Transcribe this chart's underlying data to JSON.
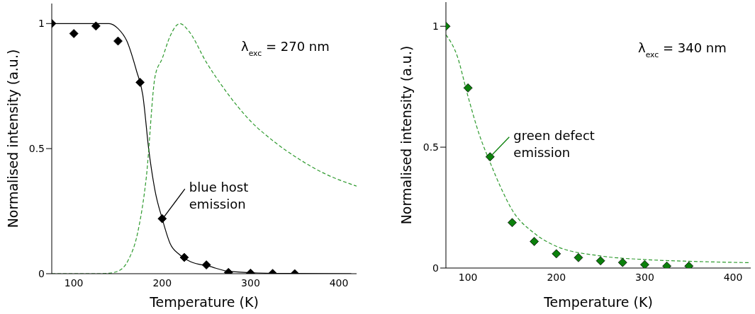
{
  "chart_data": [
    {
      "type": "scatter",
      "xlabel": "Temperature (K)",
      "ylabel": "Normalised intensity (a.u.)",
      "xlim": [
        75,
        420
      ],
      "xticks": [
        100,
        200,
        300,
        400
      ],
      "ylim": [
        0,
        1.08
      ],
      "yticks": [
        0,
        0.5,
        1
      ],
      "annotations": [
        "λ$_{exc}$ = 270 nm",
        {
          "text": "blue host emission",
          "x": 200,
          "y": 0.22
        }
      ],
      "series": [
        {
          "type": "line",
          "color": "#000000",
          "line_style": "solid",
          "marker": "none",
          "x": [
            75,
            140,
            150,
            160,
            171,
            178,
            185,
            192,
            200,
            209,
            220,
            232,
            253,
            274,
            300,
            340,
            414
          ],
          "values": [
            1,
            1,
            0.98,
            0.93,
            0.81,
            0.715,
            0.49,
            0.33,
            0.22,
            0.12,
            0.075,
            0.048,
            0.03,
            0.01,
            0.004,
            0.001,
            0
          ]
        },
        {
          "type": "line",
          "color": "#2e9a2e",
          "line_style": "dashed",
          "marker": "none",
          "x": [
            75,
            130,
            140,
            150,
            162,
            172,
            182,
            192,
            200,
            209,
            220,
            230,
            250,
            272,
            300,
            327,
            354,
            381,
            420
          ],
          "values": [
            0,
            0,
            0.002,
            0.01,
            0.057,
            0.16,
            0.385,
            0.79,
            0.86,
            0.95,
            1,
            0.97,
            0.845,
            0.73,
            0.61,
            0.527,
            0.46,
            0.405,
            0.35
          ]
        },
        {
          "color": "#000000",
          "marker": "diamond",
          "x": [
            75,
            100,
            125,
            150,
            175,
            200,
            225,
            250,
            275,
            300,
            325,
            350
          ],
          "values": [
            1,
            0.96,
            0.99,
            0.93,
            0.765,
            0.22,
            0.065,
            0.035,
            0.005,
            0.002,
            0.001,
            0
          ]
        }
      ]
    },
    {
      "type": "scatter",
      "xlabel": "Temperature (K)",
      "ylabel": "Normalised intensity (a.u.)",
      "xlim": [
        75,
        420
      ],
      "xticks": [
        100,
        200,
        300,
        400
      ],
      "ylim": [
        0,
        1.1
      ],
      "yticks": [
        0,
        0.5,
        1
      ],
      "annotations": [
        "λ$_{exc}$ = 340 nm",
        {
          "text": "green defect emission",
          "x": 125,
          "y": 0.46
        }
      ],
      "series": [
        {
          "type": "line",
          "color": "#2e9a2e",
          "line_style": "dashed",
          "marker": "none",
          "x": [
            75,
            87.5,
            100,
            112.5,
            125,
            137.5,
            150,
            175,
            200,
            250,
            300,
            350,
            420
          ],
          "values": [
            0.965,
            0.88,
            0.71,
            0.555,
            0.437,
            0.33,
            0.24,
            0.144,
            0.09,
            0.05,
            0.035,
            0.028,
            0.022
          ]
        },
        {
          "color": "#0b800b",
          "marker": "diamond",
          "x": [
            75,
            100,
            125,
            150,
            175,
            200,
            225,
            250,
            275,
            300,
            325,
            350
          ],
          "values": [
            1,
            0.745,
            0.46,
            0.188,
            0.11,
            0.059,
            0.043,
            0.03,
            0.023,
            0.014,
            0.008,
            0.008
          ]
        }
      ]
    }
  ]
}
